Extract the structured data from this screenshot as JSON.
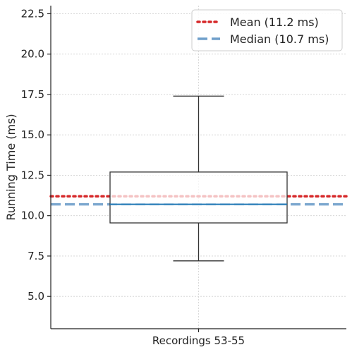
{
  "chart_data": {
    "type": "box",
    "ylabel": "Running Time (ms)",
    "xlabel": "",
    "categories": [
      "Recordings 53-55"
    ],
    "ylim": [
      3.0,
      23.0
    ],
    "yticks": [
      5.0,
      7.5,
      10.0,
      12.5,
      15.0,
      17.5,
      20.0,
      22.5
    ],
    "ytick_labels": [
      "5.0",
      "7.5",
      "10.0",
      "12.5",
      "15.0",
      "17.5",
      "20.0",
      "22.5"
    ],
    "grid": true,
    "box": {
      "whisker_low": 7.2,
      "q1": 9.55,
      "median": 10.7,
      "q3": 12.7,
      "whisker_high": 17.4
    },
    "reference_lines": [
      {
        "name": "Mean (11.2 ms)",
        "value": 11.2,
        "style": "dotted",
        "color": "#d62728"
      },
      {
        "name": "Median (10.7 ms)",
        "value": 10.7,
        "style": "dashed",
        "color": "#6f9fca"
      }
    ],
    "legend_position": "top-right",
    "colors": {
      "median_line": "#1f77b4",
      "box": "#333333"
    }
  }
}
